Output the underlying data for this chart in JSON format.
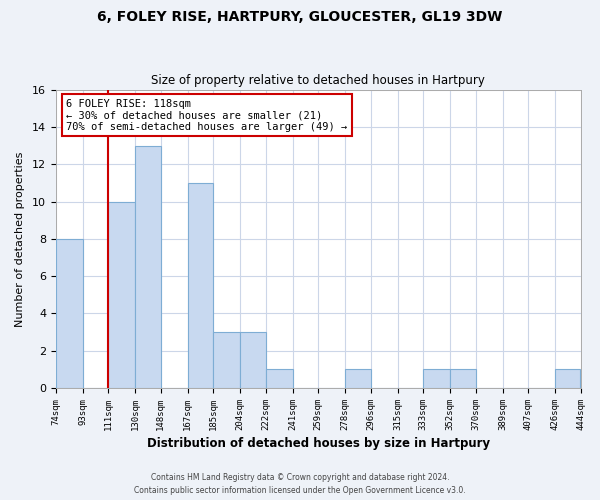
{
  "title": "6, FOLEY RISE, HARTPURY, GLOUCESTER, GL19 3DW",
  "subtitle": "Size of property relative to detached houses in Hartpury",
  "xlabel": "Distribution of detached houses by size in Hartpury",
  "ylabel": "Number of detached properties",
  "bin_labels": [
    "74sqm",
    "93sqm",
    "111sqm",
    "130sqm",
    "148sqm",
    "167sqm",
    "185sqm",
    "204sqm",
    "222sqm",
    "241sqm",
    "259sqm",
    "278sqm",
    "296sqm",
    "315sqm",
    "333sqm",
    "352sqm",
    "370sqm",
    "389sqm",
    "407sqm",
    "426sqm",
    "444sqm"
  ],
  "bin_edges": [
    74,
    93,
    111,
    130,
    148,
    167,
    185,
    204,
    222,
    241,
    259,
    278,
    296,
    315,
    333,
    352,
    370,
    389,
    407,
    426,
    444
  ],
  "bar_heights": [
    8,
    0,
    10,
    13,
    0,
    11,
    3,
    3,
    1,
    0,
    0,
    1,
    0,
    0,
    1,
    1,
    0,
    0,
    0,
    1
  ],
  "bar_color": "#c8d9f0",
  "bar_edgecolor": "#7eadd4",
  "redline_x": 111,
  "annotation_title": "6 FOLEY RISE: 118sqm",
  "annotation_line1": "← 30% of detached houses are smaller (21)",
  "annotation_line2": "70% of semi-detached houses are larger (49) →",
  "annotation_box_edgecolor": "#cc0000",
  "redline_color": "#cc0000",
  "ylim": [
    0,
    16
  ],
  "yticks": [
    0,
    2,
    4,
    6,
    8,
    10,
    12,
    14,
    16
  ],
  "footer1": "Contains HM Land Registry data © Crown copyright and database right 2024.",
  "footer2": "Contains public sector information licensed under the Open Government Licence v3.0.",
  "bg_color": "#eef2f8",
  "plot_bg_color": "#ffffff",
  "grid_color": "#ccd6e8"
}
